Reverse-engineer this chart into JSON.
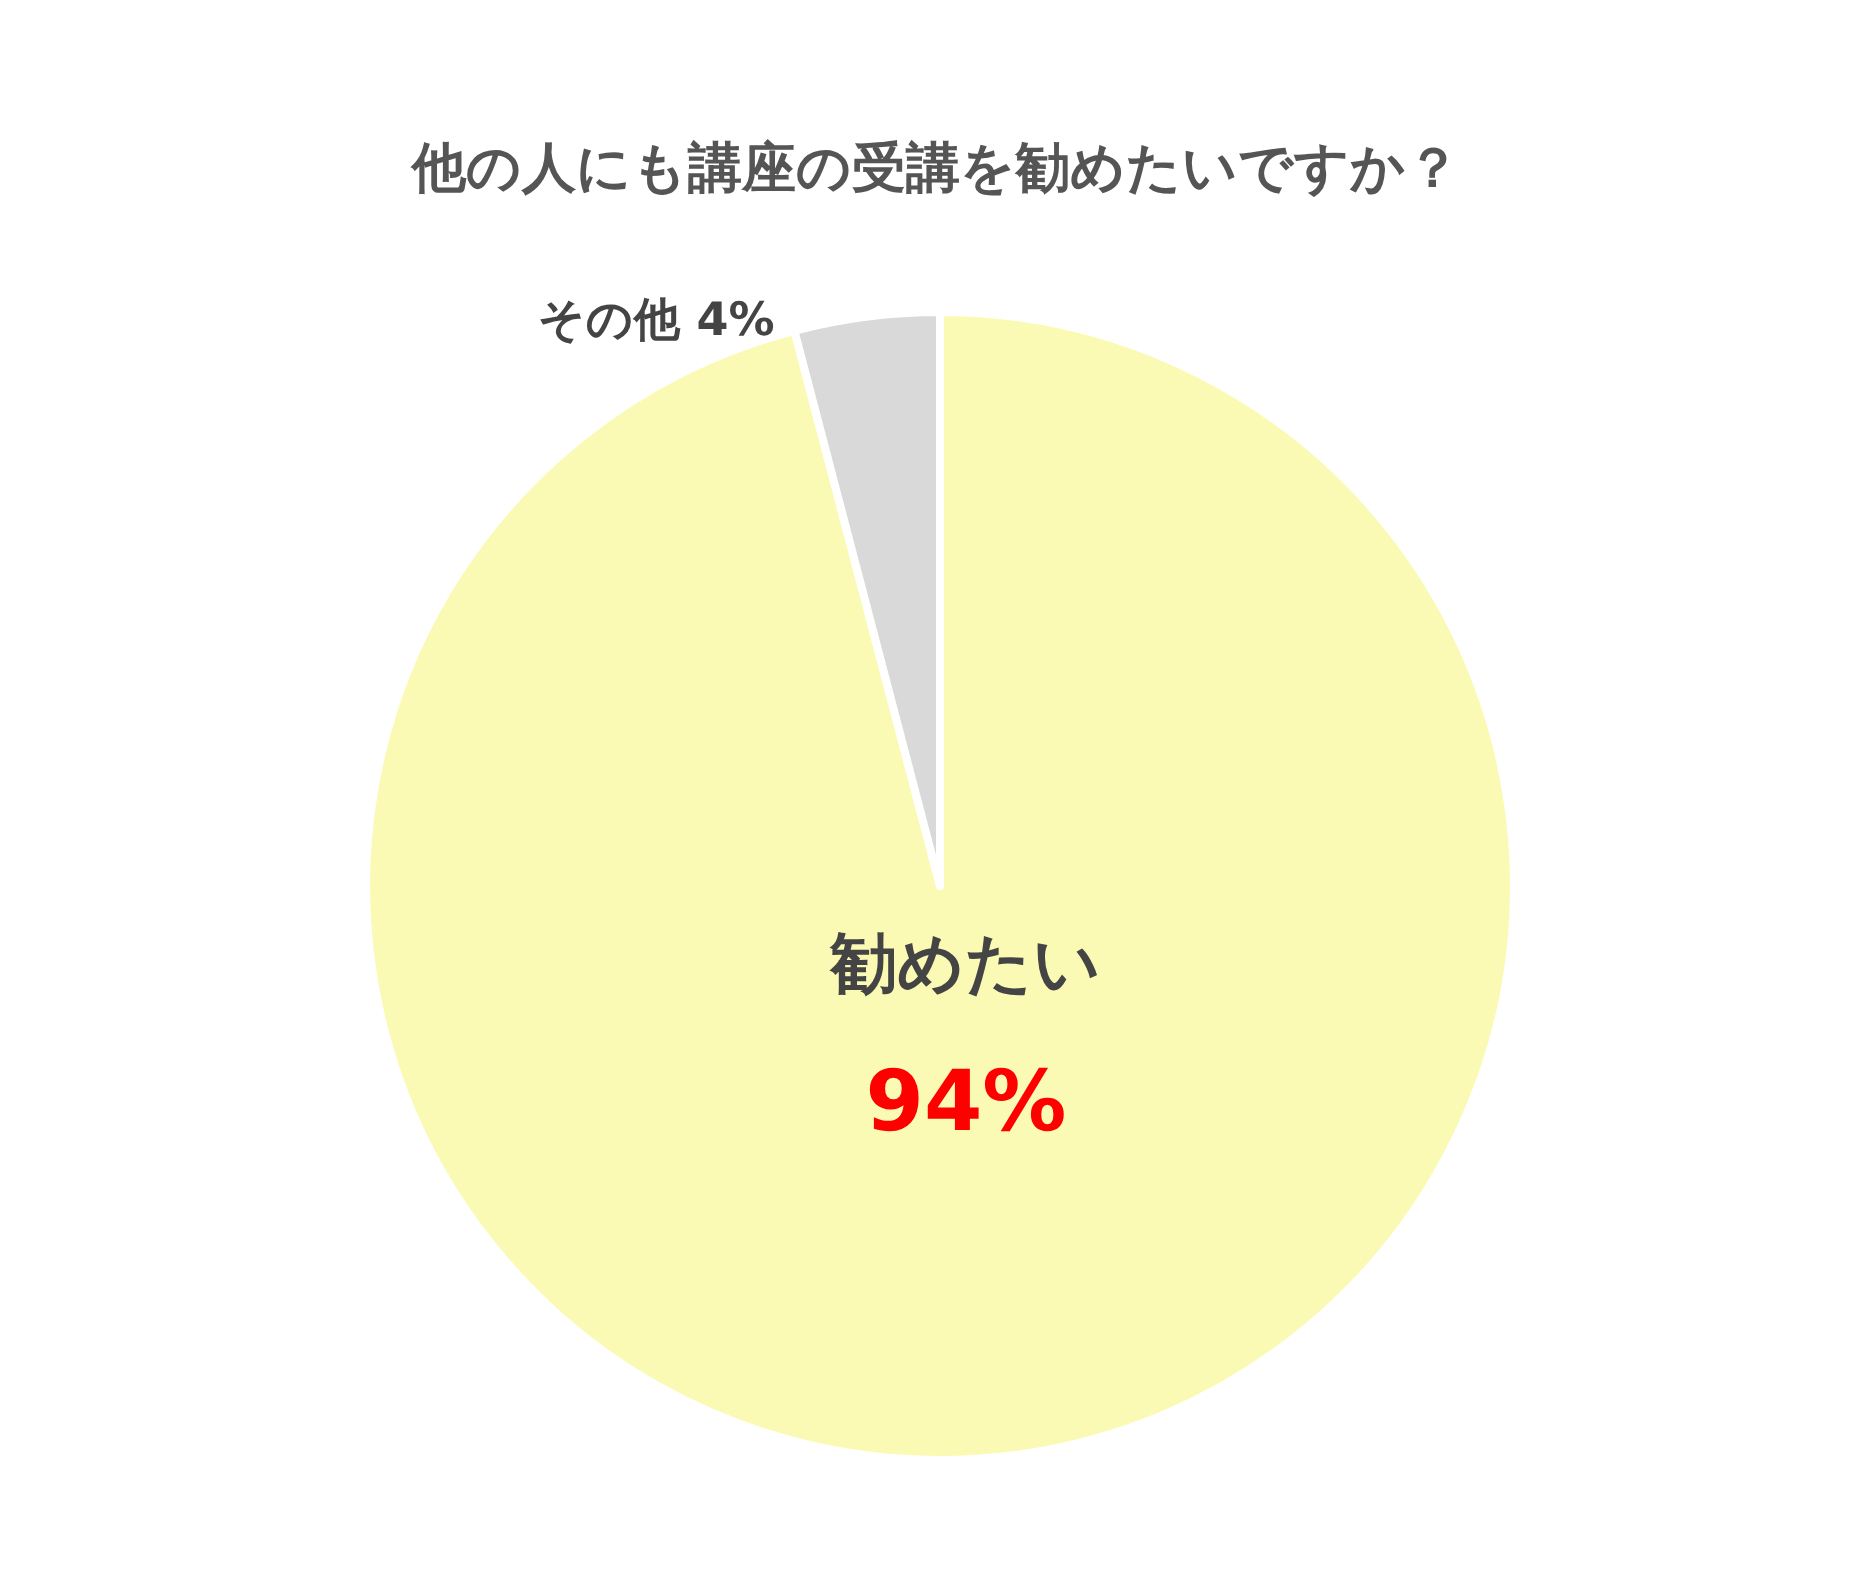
{
  "chart_data": {
    "type": "pie",
    "title": "他の人にも講座の受講を勧めたいですか？",
    "categories": [
      "勧めたい",
      "その他"
    ],
    "values": [
      94,
      4
    ],
    "colors": [
      "#fafab4",
      "#d9d9d9"
    ],
    "value_labels": [
      "94%",
      "4%"
    ]
  }
}
